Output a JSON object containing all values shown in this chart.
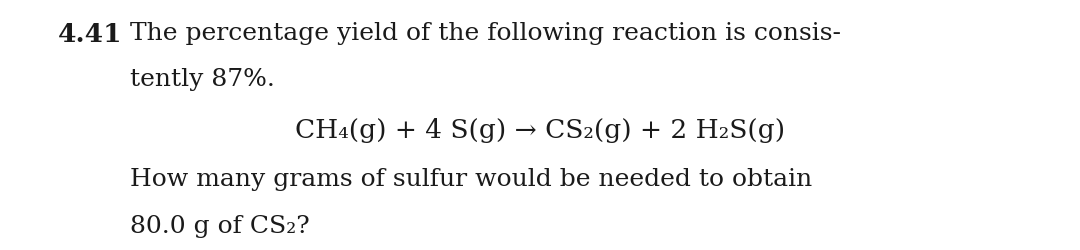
{
  "background_color": "#ffffff",
  "figsize": [
    10.8,
    2.5
  ],
  "dpi": 100,
  "problem_number": "4.41",
  "line1": "The percentage yield of the following reaction is consis-",
  "line2": "tently 87%.",
  "equation": "CH₄(g) + 4 S(g) → CS₂(g) + 2 H₂S(g)",
  "line4": "How many grams of sulfur would be needed to obtain",
  "line5": "80.0 g of CS₂?",
  "font_size_number": 19,
  "font_size_text": 18,
  "font_size_eq": 19,
  "text_color": "#1a1a1a",
  "font_family": "DejaVu Serif"
}
